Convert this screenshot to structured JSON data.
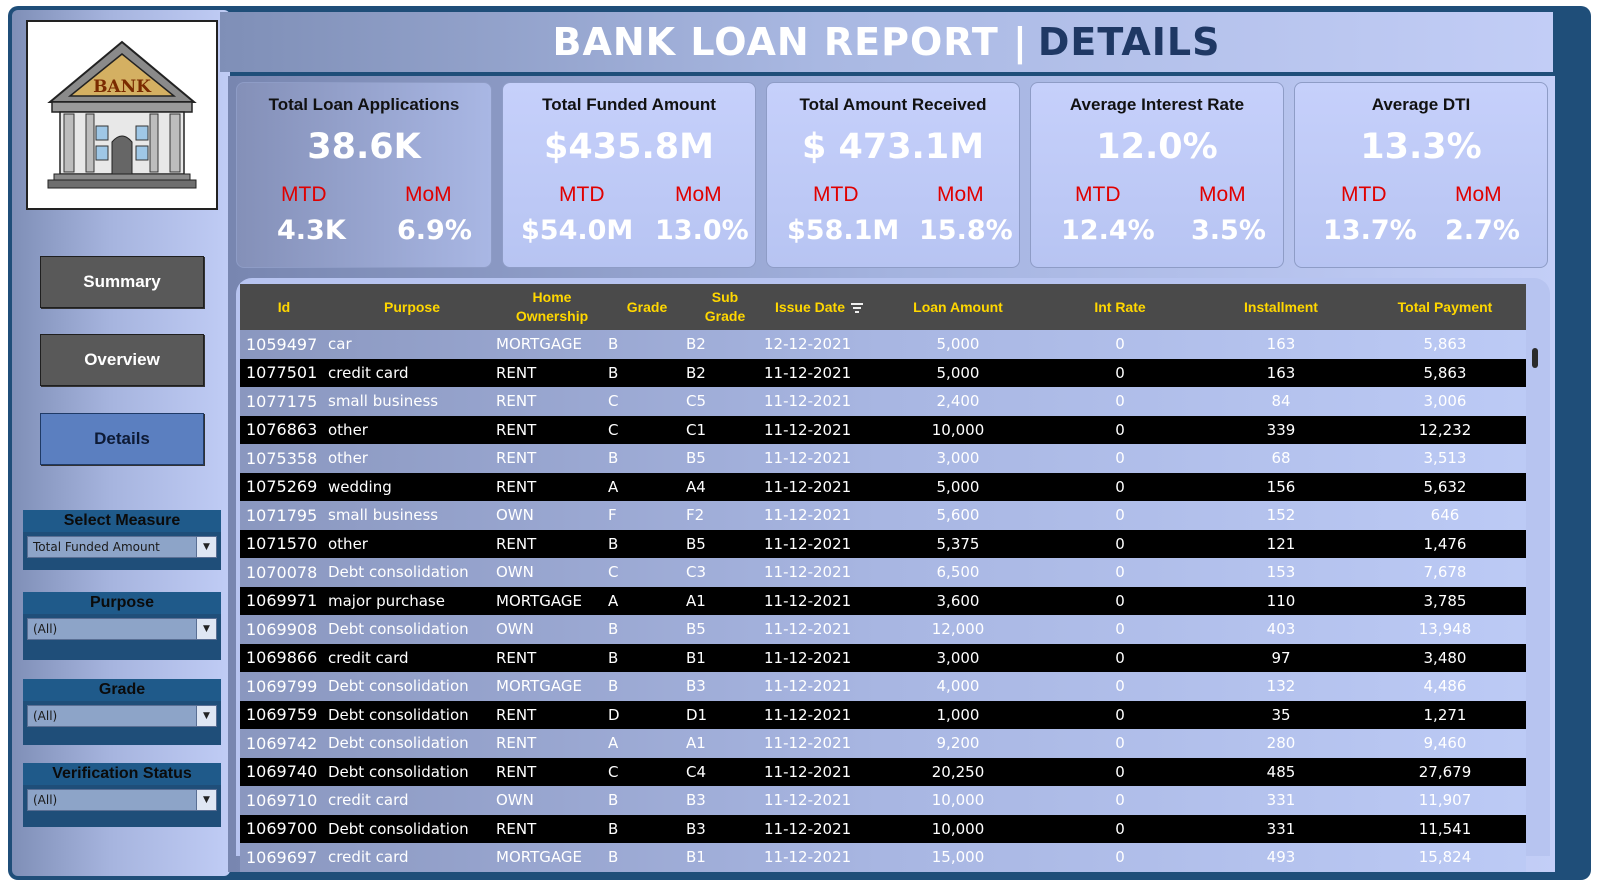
{
  "header": {
    "title_main": "BANK LOAN REPORT |",
    "title_sub": "DETAILS"
  },
  "logo": {
    "text": "BANK"
  },
  "nav": [
    {
      "label": "Summary",
      "active": false
    },
    {
      "label": "Overview",
      "active": false
    },
    {
      "label": "Details",
      "active": true
    }
  ],
  "filters": [
    {
      "title": "Select Measure",
      "value": "Total Funded Amount"
    },
    {
      "title": "Purpose",
      "value": "(All)"
    },
    {
      "title": "Grade",
      "value": "(All)"
    },
    {
      "title": "Verification Status",
      "value": "(All)"
    }
  ],
  "kpis": [
    {
      "title": "Total Loan Applications",
      "value": "38.6K",
      "mtd_label": "MTD",
      "mom_label": "MoM",
      "mtd": "4.3K",
      "mom": "6.9%"
    },
    {
      "title": "Total Funded Amount",
      "value": "$435.8M",
      "mtd_label": "MTD",
      "mom_label": "MoM",
      "mtd": "$54.0M",
      "mom": "13.0%"
    },
    {
      "title": "Total Amount Received",
      "value": "$ 473.1M",
      "mtd_label": "MTD",
      "mom_label": "MoM",
      "mtd": "$58.1M",
      "mom": "15.8%"
    },
    {
      "title": "Average Interest Rate",
      "value": "12.0%",
      "mtd_label": "MTD",
      "mom_label": "MoM",
      "mtd": "12.4%",
      "mom": "3.5%"
    },
    {
      "title": "Average DTI",
      "value": "13.3%",
      "mtd_label": "MTD",
      "mom_label": "MoM",
      "mtd": "13.7%",
      "mom": "2.7%"
    }
  ],
  "table": {
    "columns": [
      "Id",
      "Purpose",
      "Home Ownership",
      "Grade",
      "Sub Grade",
      "Issue Date",
      "Loan Amount",
      "Int Rate",
      "Installment",
      "Total Payment"
    ],
    "rows": [
      [
        "1059497",
        "car",
        "MORTGAGE",
        "B",
        "B2",
        "12-12-2021",
        "5,000",
        "0",
        "163",
        "5,863"
      ],
      [
        "1077501",
        "credit card",
        "RENT",
        "B",
        "B2",
        "11-12-2021",
        "5,000",
        "0",
        "163",
        "5,863"
      ],
      [
        "1077175",
        "small business",
        "RENT",
        "C",
        "C5",
        "11-12-2021",
        "2,400",
        "0",
        "84",
        "3,006"
      ],
      [
        "1076863",
        "other",
        "RENT",
        "C",
        "C1",
        "11-12-2021",
        "10,000",
        "0",
        "339",
        "12,232"
      ],
      [
        "1075358",
        "other",
        "RENT",
        "B",
        "B5",
        "11-12-2021",
        "3,000",
        "0",
        "68",
        "3,513"
      ],
      [
        "1075269",
        "wedding",
        "RENT",
        "A",
        "A4",
        "11-12-2021",
        "5,000",
        "0",
        "156",
        "5,632"
      ],
      [
        "1071795",
        "small business",
        "OWN",
        "F",
        "F2",
        "11-12-2021",
        "5,600",
        "0",
        "152",
        "646"
      ],
      [
        "1071570",
        "other",
        "RENT",
        "B",
        "B5",
        "11-12-2021",
        "5,375",
        "0",
        "121",
        "1,476"
      ],
      [
        "1070078",
        "Debt consolidation",
        "OWN",
        "C",
        "C3",
        "11-12-2021",
        "6,500",
        "0",
        "153",
        "7,678"
      ],
      [
        "1069971",
        "major purchase",
        "MORTGAGE",
        "A",
        "A1",
        "11-12-2021",
        "3,600",
        "0",
        "110",
        "3,785"
      ],
      [
        "1069908",
        "Debt consolidation",
        "OWN",
        "B",
        "B5",
        "11-12-2021",
        "12,000",
        "0",
        "403",
        "13,948"
      ],
      [
        "1069866",
        "credit card",
        "RENT",
        "B",
        "B1",
        "11-12-2021",
        "3,000",
        "0",
        "97",
        "3,480"
      ],
      [
        "1069799",
        "Debt consolidation",
        "MORTGAGE",
        "B",
        "B3",
        "11-12-2021",
        "4,000",
        "0",
        "132",
        "4,486"
      ],
      [
        "1069759",
        "Debt consolidation",
        "RENT",
        "D",
        "D1",
        "11-12-2021",
        "1,000",
        "0",
        "35",
        "1,271"
      ],
      [
        "1069742",
        "Debt consolidation",
        "RENT",
        "A",
        "A1",
        "11-12-2021",
        "9,200",
        "0",
        "280",
        "9,460"
      ],
      [
        "1069740",
        "Debt consolidation",
        "RENT",
        "C",
        "C4",
        "11-12-2021",
        "20,250",
        "0",
        "485",
        "27,679"
      ],
      [
        "1069710",
        "credit card",
        "OWN",
        "B",
        "B3",
        "11-12-2021",
        "10,000",
        "0",
        "331",
        "11,907"
      ],
      [
        "1069700",
        "Debt consolidation",
        "RENT",
        "B",
        "B3",
        "11-12-2021",
        "10,000",
        "0",
        "331",
        "11,541"
      ],
      [
        "1069697",
        "credit card",
        "MORTGAGE",
        "B",
        "B1",
        "11-12-2021",
        "15,000",
        "0",
        "493",
        "15,824"
      ]
    ]
  },
  "colors": {
    "frame": "#1f4e79",
    "accent_yellow": "#ffd700",
    "mtd_red": "#e00000",
    "header_bg": "#4a4a4a"
  }
}
